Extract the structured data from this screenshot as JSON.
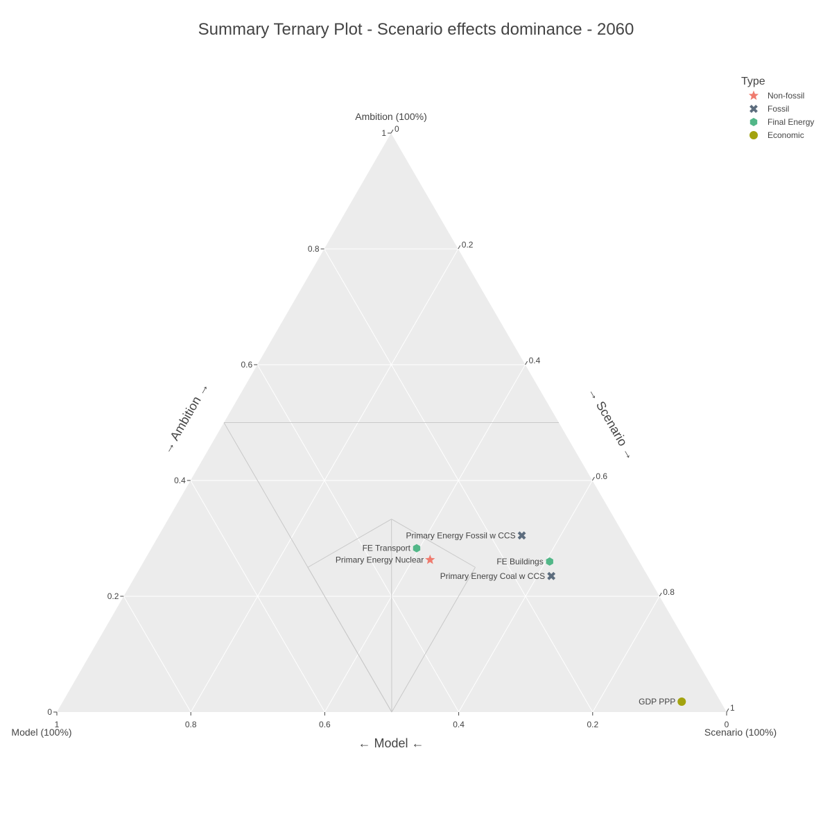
{
  "chart_data": {
    "type": "ternary-scatter",
    "title": "Summary Ternary Plot - Scenario effects dominance - 2060",
    "axes": {
      "a": {
        "name": "Ambition",
        "corner_label": "Ambition (100%)",
        "title": "→ Ambition →"
      },
      "b": {
        "name": "Model",
        "corner_label": "Model (100%)",
        "title": "← Model ←"
      },
      "c": {
        "name": "Scenario",
        "corner_label": "Scenario (100%)",
        "title": "→ Scenario →"
      }
    },
    "ticks": [
      "0",
      "0.2",
      "0.4",
      "0.6",
      "0.8",
      "1"
    ],
    "grid": true,
    "legend": {
      "title": "Type",
      "placement": "top-right",
      "entries": [
        {
          "name": "Non-fossil",
          "symbol": "star",
          "color": "#ef7b6e"
        },
        {
          "name": "Fossil",
          "symbol": "x",
          "color": "#5d6d7e"
        },
        {
          "name": "Final Energy",
          "symbol": "hexagon",
          "color": "#52b788"
        },
        {
          "name": "Economic",
          "symbol": "circle",
          "color": "#a3a30f"
        }
      ]
    },
    "points": [
      {
        "label": "Primary Energy Fossil w CCS",
        "type": "Fossil",
        "a": 0.305,
        "b": 0.153,
        "c": 0.542
      },
      {
        "label": "FE Transport",
        "type": "Final Energy",
        "a": 0.283,
        "b": 0.321,
        "c": 0.396
      },
      {
        "label": "Primary Energy Nuclear",
        "type": "Non-fossil",
        "a": 0.263,
        "b": 0.311,
        "c": 0.426
      },
      {
        "label": "FE Buildings",
        "type": "Final Energy",
        "a": 0.26,
        "b": 0.134,
        "c": 0.606
      },
      {
        "label": "Primary Energy Coal w CCS",
        "type": "Fossil",
        "a": 0.235,
        "b": 0.144,
        "c": 0.621
      },
      {
        "label": "GDP PPP",
        "type": "Economic",
        "a": 0.018,
        "b": 0.058,
        "c": 0.924
      }
    ],
    "dominance_regions": {
      "threshold": 0.5
    }
  }
}
